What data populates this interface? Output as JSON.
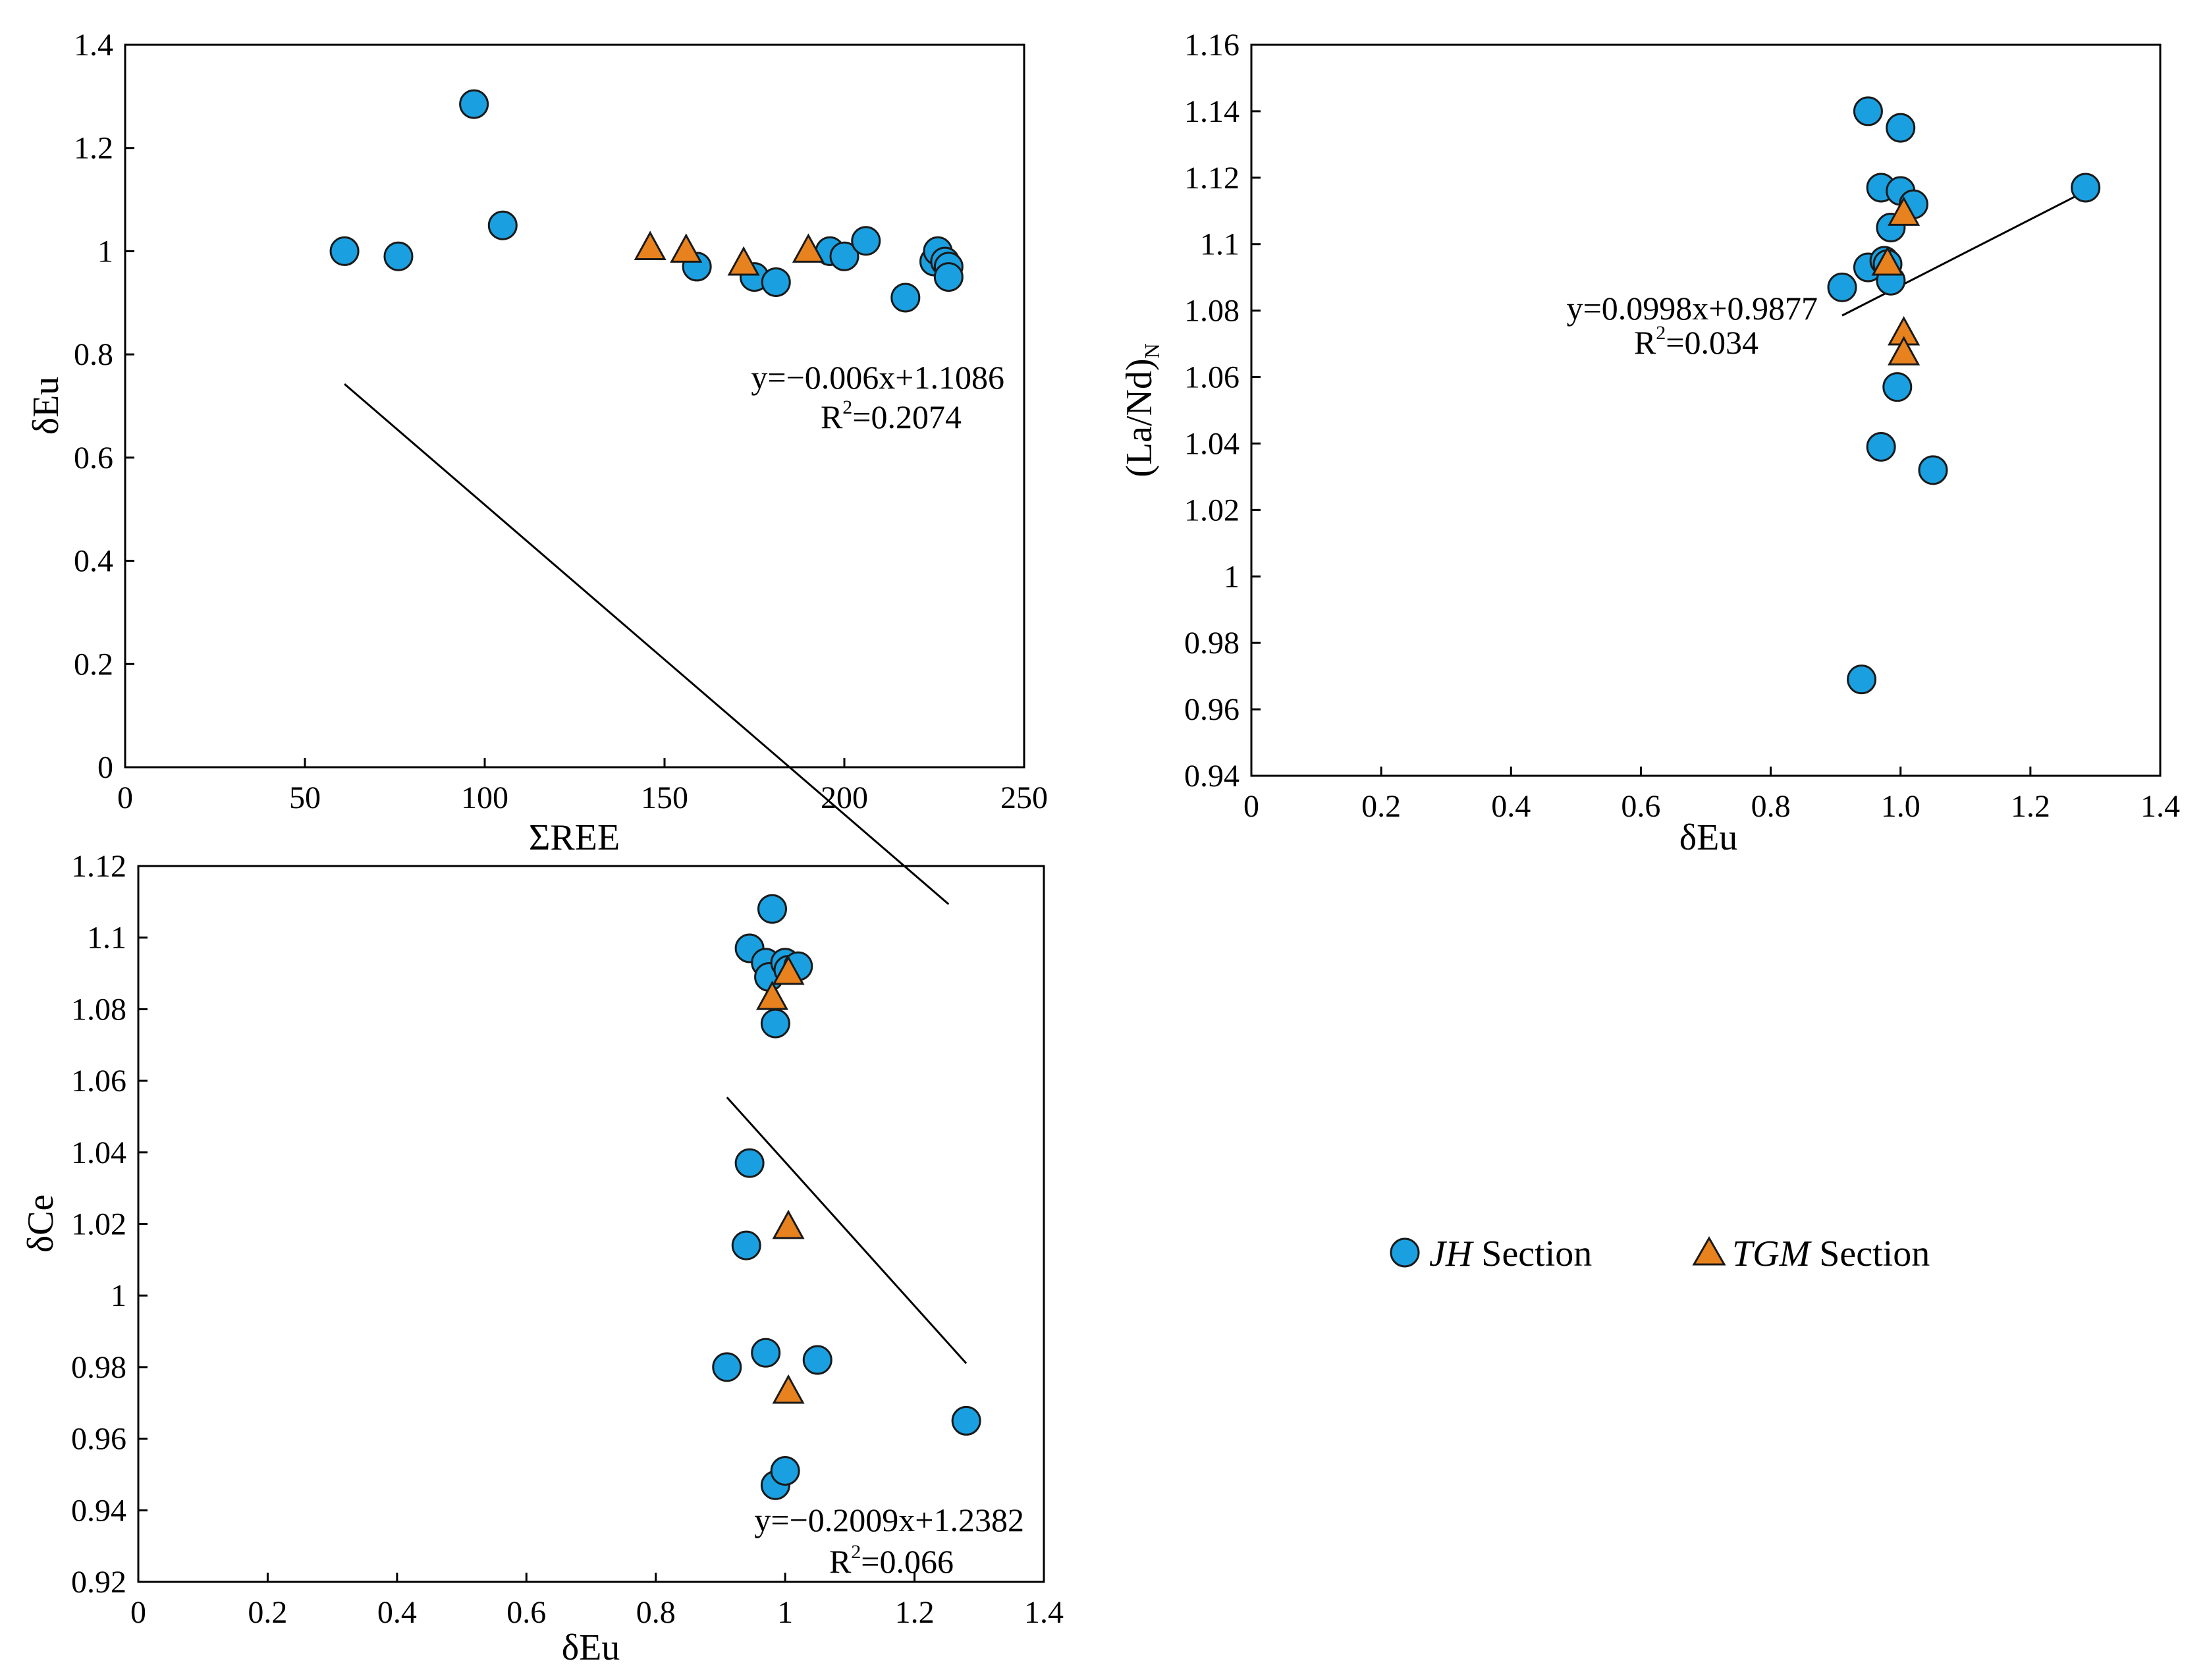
{
  "chart_data": [
    {
      "id": "top-left",
      "type": "scatter",
      "xlabel": "ΣREE",
      "ylabel": "δEu",
      "xlim": [
        0,
        250
      ],
      "ylim": [
        0,
        1.4
      ],
      "xticks": [
        0,
        50,
        100,
        150,
        200,
        250
      ],
      "xtick_labels": [
        "0",
        "50",
        "100",
        "150",
        "200",
        "250"
      ],
      "yticks": [
        0,
        0.2,
        0.4,
        0.6,
        0.8,
        1,
        1.2,
        1.4
      ],
      "ytick_labels": [
        "0",
        "0.2",
        "0.4",
        "0.6",
        "0.8",
        "1",
        "1.2",
        "1.4"
      ],
      "series": [
        {
          "name": "JH Section",
          "marker": "circle",
          "points": [
            [
              61,
              1.0
            ],
            [
              76,
              0.99
            ],
            [
              97,
              1.285
            ],
            [
              105,
              1.05
            ],
            [
              159,
              0.97
            ],
            [
              175,
              0.95
            ],
            [
              181,
              0.94
            ],
            [
              196,
              1.0
            ],
            [
              200,
              0.99
            ],
            [
              206,
              1.02
            ],
            [
              217,
              0.91
            ],
            [
              225,
              0.98
            ],
            [
              226,
              1.0
            ],
            [
              228,
              0.98
            ],
            [
              229,
              0.97
            ],
            [
              229,
              0.95
            ]
          ]
        },
        {
          "name": "TGM Section",
          "marker": "triangle",
          "points": [
            [
              146,
              1.005
            ],
            [
              156,
              1.0
            ],
            [
              172,
              0.975
            ],
            [
              190,
              1.0
            ]
          ]
        }
      ],
      "trendline": {
        "slope": -0.006,
        "intercept": 1.1086,
        "x_range": [
          61,
          229
        ]
      },
      "equation": "y=−0.006x+1.1086",
      "r2": "R²=0.2074",
      "r2_prefix": "R",
      "r2_sup": "2",
      "r2_suffix": "=0.2074"
    },
    {
      "id": "top-right",
      "type": "scatter",
      "xlabel": "δEu",
      "ylabel": "(La/Nd)",
      "ylabel_sub": "N",
      "xlim": [
        0,
        1.4
      ],
      "ylim": [
        0.94,
        1.16
      ],
      "xticks": [
        0,
        0.2,
        0.4,
        0.6,
        0.8,
        1.0,
        1.2,
        1.4
      ],
      "xtick_labels": [
        "0",
        "0.2",
        "0.4",
        "0.6",
        "0.8",
        "1.0",
        "1.2",
        "1.4"
      ],
      "yticks": [
        0.94,
        0.96,
        0.98,
        1,
        1.02,
        1.04,
        1.06,
        1.08,
        1.1,
        1.12,
        1.14,
        1.16
      ],
      "ytick_labels": [
        "0.94",
        "0.96",
        "0.98",
        "1",
        "1.02",
        "1.04",
        "1.06",
        "1.08",
        "1.1",
        "1.12",
        "1.14",
        "1.16"
      ],
      "series": [
        {
          "name": "JH Section",
          "marker": "circle",
          "points": [
            [
              0.91,
              1.087
            ],
            [
              0.94,
              0.969
            ],
            [
              0.95,
              1.14
            ],
            [
              0.95,
              1.093
            ],
            [
              0.97,
              1.117
            ],
            [
              0.97,
              1.039
            ],
            [
              0.975,
              1.095
            ],
            [
              0.98,
              1.094
            ],
            [
              0.985,
              1.105
            ],
            [
              0.985,
              1.089
            ],
            [
              0.995,
              1.057
            ],
            [
              1.0,
              1.135
            ],
            [
              1.0,
              1.116
            ],
            [
              1.02,
              1.112
            ],
            [
              1.05,
              1.032
            ],
            [
              1.285,
              1.117
            ]
          ]
        },
        {
          "name": "TGM Section",
          "marker": "triangle",
          "points": [
            [
              0.98,
              1.094
            ],
            [
              1.005,
              1.109
            ],
            [
              1.005,
              1.073
            ],
            [
              1.005,
              1.067
            ]
          ]
        }
      ],
      "trendline": {
        "slope": 0.0998,
        "intercept": 0.9877,
        "x_range": [
          0.91,
          1.285
        ]
      },
      "equation": "y=0.0998x+0.9877",
      "r2": "R²=0.034",
      "r2_prefix": "R",
      "r2_sup": "2",
      "r2_suffix": "=0.034"
    },
    {
      "id": "bottom-left",
      "type": "scatter",
      "xlabel": "δEu",
      "ylabel": "δCe",
      "xlim": [
        0,
        1.4
      ],
      "ylim": [
        0.92,
        1.12
      ],
      "xticks": [
        0,
        0.2,
        0.4,
        0.6,
        0.8,
        1,
        1.2,
        1.4
      ],
      "xtick_labels": [
        "0",
        "0.2",
        "0.4",
        "0.6",
        "0.8",
        "1",
        "1.2",
        "1.4"
      ],
      "yticks": [
        0.92,
        0.94,
        0.96,
        0.98,
        1,
        1.02,
        1.04,
        1.06,
        1.08,
        1.1,
        1.12
      ],
      "ytick_labels": [
        "0.92",
        "0.94",
        "0.96",
        "0.98",
        "1",
        "1.02",
        "1.04",
        "1.06",
        "1.08",
        "1.1",
        "1.12"
      ],
      "series": [
        {
          "name": "JH Section",
          "marker": "circle",
          "points": [
            [
              0.91,
              0.98
            ],
            [
              0.94,
              1.014
            ],
            [
              0.945,
              1.037
            ],
            [
              0.945,
              1.097
            ],
            [
              0.97,
              0.984
            ],
            [
              0.97,
              1.093
            ],
            [
              0.975,
              1.089
            ],
            [
              0.98,
              1.108
            ],
            [
              0.985,
              0.947
            ],
            [
              0.985,
              1.076
            ],
            [
              1.0,
              0.951
            ],
            [
              1.0,
              1.093
            ],
            [
              1.005,
              1.091
            ],
            [
              1.02,
              1.092
            ],
            [
              1.05,
              0.982
            ],
            [
              1.28,
              0.965
            ]
          ]
        },
        {
          "name": "TGM Section",
          "marker": "triangle",
          "points": [
            [
              0.98,
              1.083
            ],
            [
              1.005,
              1.09
            ],
            [
              1.005,
              1.019
            ],
            [
              1.005,
              0.973
            ]
          ]
        }
      ],
      "trendline": {
        "slope": -0.2009,
        "intercept": 1.2382,
        "x_range": [
          0.91,
          1.28
        ]
      },
      "equation": "y=−0.2009x+1.2382",
      "r2": "R²=0.066",
      "r2_prefix": "R",
      "r2_sup": "2",
      "r2_suffix": "=0.066"
    }
  ],
  "legend": {
    "items": [
      {
        "series_italic": "JH",
        "label": " Section",
        "marker": "circle"
      },
      {
        "series_italic": "TGM",
        "label": " Section",
        "marker": "triangle"
      }
    ]
  },
  "colors": {
    "circle_fill": "#1aa0e0",
    "triangle_fill": "#e8821e",
    "stroke": "#1a1a1a"
  }
}
